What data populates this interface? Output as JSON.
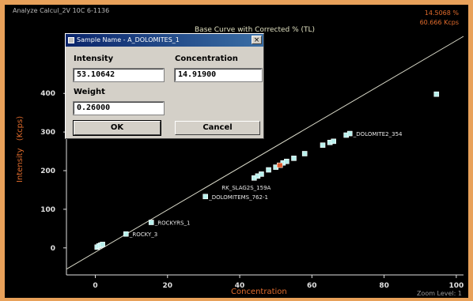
{
  "window": {
    "top_left_text": "Analyze Calcul_2V 10C 6-1136",
    "top_right_line1": "14.5068 %",
    "top_right_line2": "60.666 Kcps",
    "bottom_right_text": "Zoom Level: 1"
  },
  "chart_data": {
    "type": "scatter",
    "title": "Base Curve with Corrected % (TL)",
    "xlabel": "Concentration",
    "ylabel": "Intensity (Kcps)",
    "xlim": [
      -8,
      102
    ],
    "ylim": [
      -70,
      560
    ],
    "x_ticks": [
      0,
      20,
      40,
      60,
      80,
      100
    ],
    "y_ticks": [
      0,
      100,
      200,
      300,
      400
    ],
    "x_tick_labels": [
      "0",
      "20",
      "40",
      "60",
      "80",
      "100"
    ],
    "y_tick_labels": [
      "0",
      "100",
      "200",
      "300",
      "400"
    ],
    "grid": false,
    "fit_line": {
      "x0": -8,
      "y0": -55,
      "x1": 102,
      "y1": 560,
      "color": "#d8d8c8"
    },
    "points": [
      {
        "x": 0.5,
        "y": 2
      },
      {
        "x": 1,
        "y": 5
      },
      {
        "x": 1.5,
        "y": 7
      },
      {
        "x": 2,
        "y": 9
      },
      {
        "x": 8.5,
        "y": 36
      },
      {
        "x": 15.5,
        "y": 66
      },
      {
        "x": 30.5,
        "y": 133
      },
      {
        "x": 44,
        "y": 181
      },
      {
        "x": 45,
        "y": 186
      },
      {
        "x": 46,
        "y": 191
      },
      {
        "x": 48,
        "y": 202
      },
      {
        "x": 50,
        "y": 209
      },
      {
        "x": 52,
        "y": 220
      },
      {
        "x": 53,
        "y": 224
      },
      {
        "x": 55,
        "y": 232
      },
      {
        "x": 58,
        "y": 244
      },
      {
        "x": 63,
        "y": 266
      },
      {
        "x": 65,
        "y": 273
      },
      {
        "x": 66,
        "y": 276
      },
      {
        "x": 69.5,
        "y": 292
      },
      {
        "x": 70.5,
        "y": 296
      },
      {
        "x": 94.5,
        "y": 398
      }
    ],
    "highlight_points": [
      {
        "x": 51,
        "y": 214,
        "color": "#e05a2c"
      }
    ],
    "annotations": [
      {
        "text": "_ROCKY_3",
        "x": 9.5,
        "y": 36
      },
      {
        "text": "_ROCKYRS_1",
        "x": 16.5,
        "y": 66
      },
      {
        "text": "_DOLOMITEMS_762-1",
        "x": 31.5,
        "y": 133
      },
      {
        "text": "RK_SLAG2S_159A",
        "x": 35,
        "y": 157
      },
      {
        "text": "_DOLOMITE2_354",
        "x": 71.5,
        "y": 296
      }
    ],
    "colors": {
      "point_fill": "#b8f0ec",
      "point_stroke": "#ffffff",
      "axis": "#e0e0e0",
      "tick_label": "#e0e0e0",
      "annotation": "#e8e8e8"
    }
  },
  "dialog": {
    "title": "Sample Name - A_DOLOMITES_1",
    "close_glyph": "×",
    "intensity_label": "Intensity",
    "intensity_value": "53.10642",
    "concentration_label": "Concentration",
    "concentration_value": "14.91900",
    "weight_label": "Weight",
    "weight_value": "0.26000",
    "ok_label": "OK",
    "cancel_label": "Cancel"
  }
}
